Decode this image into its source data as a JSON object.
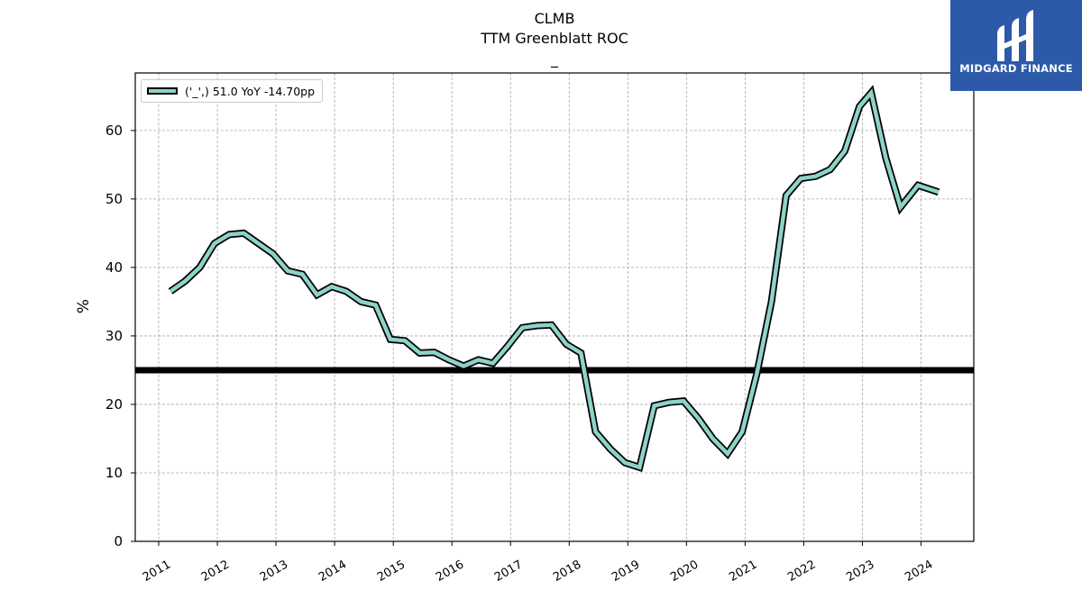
{
  "header": {
    "ticker": "CLMB",
    "metric": "TTM Greenblatt ROC",
    "subtitle": "_"
  },
  "logo": {
    "text": "MIDGARD FINANCE"
  },
  "chart_data": {
    "type": "line",
    "title": "CLMB",
    "subtitle": "TTM Greenblatt ROC",
    "xlabel": "",
    "ylabel": "%",
    "ylim": [
      0,
      68.4
    ],
    "yticks": [
      0,
      10,
      20,
      30,
      40,
      50,
      60
    ],
    "xlim": [
      2010.6,
      2024.9
    ],
    "xticks": [
      "2011",
      "2012",
      "2013",
      "2014",
      "2015",
      "2016",
      "2017",
      "2018",
      "2019",
      "2020",
      "2021",
      "2022",
      "2023",
      "2024"
    ],
    "grid": true,
    "legend_position": "upper-left",
    "series": [
      {
        "name": "('_',) 51.0 YoY -14.70pp",
        "color": "#8dd3c7",
        "edge_color": "#000000",
        "x": [
          2011.2,
          2011.45,
          2011.7,
          2011.95,
          2012.2,
          2012.45,
          2012.7,
          2012.95,
          2013.2,
          2013.45,
          2013.7,
          2013.95,
          2014.2,
          2014.45,
          2014.7,
          2014.95,
          2015.2,
          2015.45,
          2015.7,
          2015.95,
          2016.2,
          2016.45,
          2016.7,
          2016.95,
          2017.2,
          2017.45,
          2017.7,
          2017.95,
          2018.2,
          2018.45,
          2018.7,
          2018.95,
          2019.2,
          2019.45,
          2019.7,
          2019.95,
          2020.2,
          2020.45,
          2020.7,
          2020.95,
          2021.2,
          2021.45,
          2021.7,
          2021.95,
          2022.2,
          2022.45,
          2022.7,
          2022.95,
          2023.15,
          2023.4,
          2023.65,
          2023.95,
          2024.3
        ],
        "values": [
          36.5,
          38.0,
          40.0,
          43.5,
          44.8,
          45.0,
          43.5,
          42.0,
          39.5,
          39.0,
          36.0,
          37.2,
          36.5,
          35.0,
          34.5,
          29.5,
          29.3,
          27.5,
          27.6,
          26.5,
          25.6,
          26.5,
          26.0,
          28.5,
          31.2,
          31.5,
          31.6,
          28.8,
          27.5,
          16.0,
          13.5,
          11.5,
          10.8,
          19.8,
          20.3,
          20.5,
          18.0,
          15.0,
          12.8,
          16.0,
          24.5,
          35.0,
          50.5,
          53.0,
          53.3,
          54.3,
          57.0,
          63.5,
          65.5,
          56.0,
          48.8,
          52.0,
          51.0
        ]
      }
    ],
    "reference_line": {
      "y": 25,
      "color": "#000000"
    }
  }
}
